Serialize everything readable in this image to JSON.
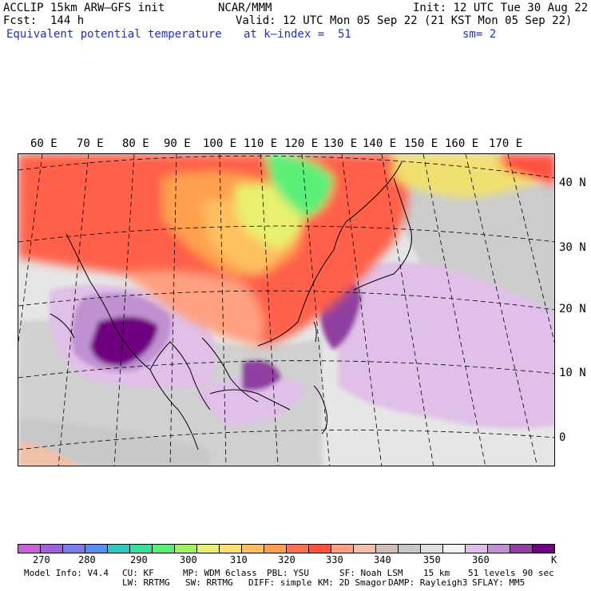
{
  "header": {
    "model": "ACCLIP 15km ARW–GFS init",
    "center": "NCAR/MMM",
    "init": "Init: 12 UTC Tue 30 Aug 22",
    "fcst": "Fcst:  144 h",
    "valid": "Valid: 12 UTC Mon 05 Sep 22 (21 KST Mon 05 Sep 22)",
    "field": "Equivalent potential temperature",
    "level": "at k–index =  51",
    "smoothing": "sm= 2"
  },
  "map": {
    "lon_labels": [
      "60 E",
      "70 E",
      "80 E",
      "90 E",
      "100 E",
      "110 E",
      "120 E",
      "130 E",
      "140 E",
      "150 E",
      "160 E",
      "170 E"
    ],
    "lat_labels": [
      "40 N",
      "30 N",
      "20 N",
      "10 N",
      "0"
    ]
  },
  "colorbar": {
    "colors": [
      "#c860d8",
      "#a060e0",
      "#7c7ce8",
      "#5a8ef0",
      "#30c8c0",
      "#38e09a",
      "#5af078",
      "#a0f060",
      "#e8f070",
      "#ffe070",
      "#ffc060",
      "#ffa050",
      "#ff7050",
      "#ff5040",
      "#ffa080",
      "#f0c0a8",
      "#d0c0b8",
      "#c8c8c8",
      "#e0e0e0",
      "#f4f4f4",
      "#e0c0e8",
      "#c090d0",
      "#9040a0",
      "#700080"
    ],
    "ticks": [
      "270",
      "280",
      "290",
      "300",
      "310",
      "320",
      "330",
      "340",
      "350",
      "360"
    ],
    "unit": "K"
  },
  "footer": {
    "line1": [
      "Model Info: V4.4",
      "CU: KF",
      "MP: WDM 6class",
      "PBL: YSU",
      "SF: Noah LSM",
      "15 km",
      "51 levels",
      "90 sec"
    ],
    "line2": [
      "LW: RRTMG",
      "SW: RRTMG",
      "DIFF: simple",
      "KM: 2D Smagor",
      "DAMP: Rayleigh3",
      "SFLAY: MM5"
    ]
  }
}
